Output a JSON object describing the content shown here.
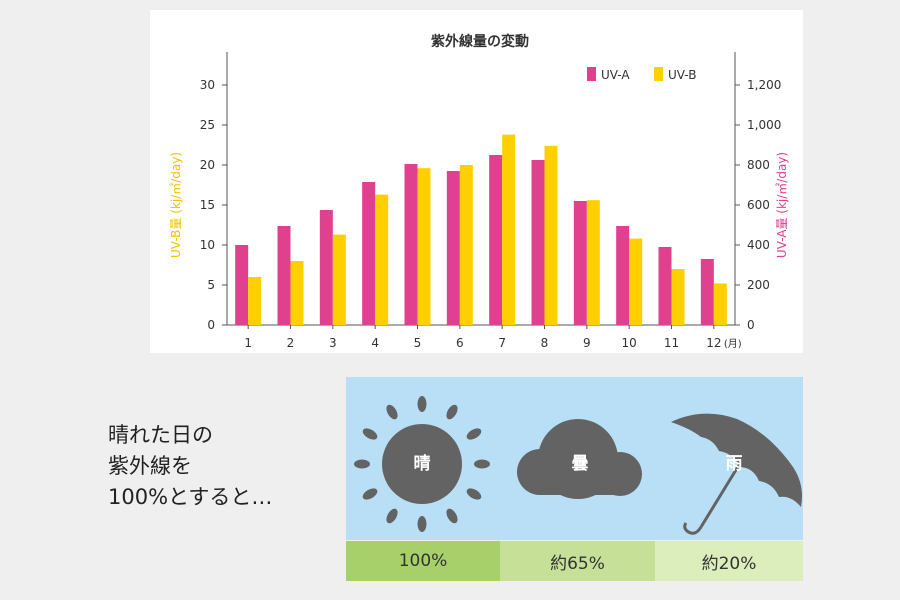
{
  "chart_data": {
    "type": "bar",
    "title": "紫外線量の変動",
    "categories": [
      "1",
      "2",
      "3",
      "4",
      "5",
      "6",
      "7",
      "8",
      "9",
      "10",
      "11",
      "12"
    ],
    "x_unit_suffix": "(月)",
    "series": [
      {
        "name": "UV-A",
        "axis": "right",
        "color": "#e0418e",
        "values": [
          400,
          495,
          575,
          715,
          805,
          770,
          850,
          825,
          620,
          495,
          390,
          330
        ]
      },
      {
        "name": "UV-B",
        "axis": "left",
        "color": "#ffd000",
        "values": [
          6,
          8,
          11.3,
          16.3,
          19.6,
          20,
          23.8,
          22.4,
          15.6,
          10.8,
          7,
          5.2
        ]
      }
    ],
    "ylabel_left": "UV-B量 (kj/㎡/day)",
    "ylabel_right": "UV-A量 (kj/㎡/day)",
    "ylim_left": [
      0,
      30
    ],
    "yticks_left": [
      0,
      5,
      10,
      15,
      20,
      25,
      30
    ],
    "ylim_right": [
      0,
      1200
    ],
    "yticks_right": [
      "0",
      "200",
      "400",
      "600",
      "800",
      "1,000",
      "1,200"
    ],
    "legend_position": "top-right",
    "grid": false
  },
  "caption": {
    "line1": "晴れた日の",
    "line2": "紫外線を",
    "line3": "100%とすると…"
  },
  "weather": {
    "items": [
      {
        "label": "晴",
        "icon": "sun-icon",
        "percent": "100%",
        "bg": "#a7d06a"
      },
      {
        "label": "曇",
        "icon": "cloud-icon",
        "percent": "約65%",
        "bg": "#c6e098"
      },
      {
        "label": "雨",
        "icon": "umbrella-icon",
        "percent": "約20%",
        "bg": "#dbeebc"
      }
    ],
    "icon_color": "#636363",
    "panel_color": "#b8dff5"
  }
}
